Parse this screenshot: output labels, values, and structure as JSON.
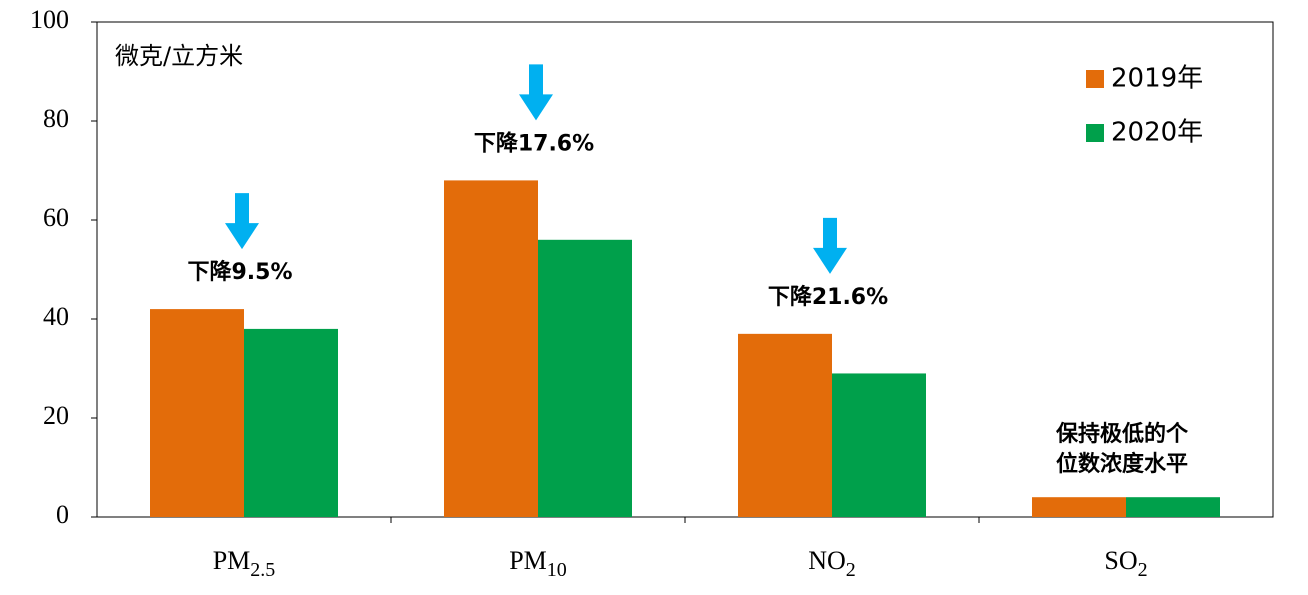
{
  "chart_data": {
    "type": "bar",
    "unit_label": "微克/立方米",
    "categories": [
      "PM2.5",
      "PM10",
      "NO2",
      "SO2"
    ],
    "series": [
      {
        "name": "2019年",
        "color": "#e36c0a",
        "values": [
          42,
          68,
          37,
          4
        ]
      },
      {
        "name": "2020年",
        "color": "#00a04b",
        "values": [
          38,
          56,
          29,
          4
        ]
      }
    ],
    "annotations": [
      [
        "下降9.5%"
      ],
      [
        "下降17.6%"
      ],
      [
        "下降21.6%"
      ],
      [
        "保持极低的个",
        "位数浓度水平"
      ]
    ],
    "ylim": [
      0,
      100
    ],
    "yticks": [
      0,
      20,
      40,
      60,
      80,
      100
    ],
    "grid": false,
    "legend": "top-right"
  }
}
